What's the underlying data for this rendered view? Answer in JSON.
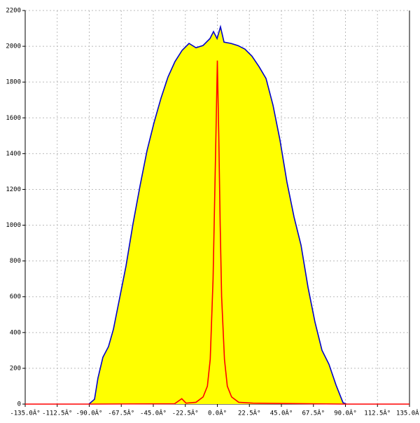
{
  "chart_data": {
    "type": "area-line",
    "xlim": [
      -135,
      135
    ],
    "ylim": [
      0,
      2200
    ],
    "xticks": [
      {
        "value": -135,
        "label": "-135.0Â°"
      },
      {
        "value": -112.5,
        "label": "-112.5Â°"
      },
      {
        "value": -90,
        "label": "-90.0Â°"
      },
      {
        "value": -67.5,
        "label": "-67.5Â°"
      },
      {
        "value": -45,
        "label": "-45.0Â°"
      },
      {
        "value": -22.5,
        "label": "-22.5Â°"
      },
      {
        "value": 0,
        "label": "0.0Â°"
      },
      {
        "value": 22.5,
        "label": "22.5Â°"
      },
      {
        "value": 45,
        "label": "45.0Â°"
      },
      {
        "value": 67.5,
        "label": "67.5Â°"
      },
      {
        "value": 90,
        "label": "90.0Â°"
      },
      {
        "value": 112.5,
        "label": "112.5Â°"
      },
      {
        "value": 135,
        "label": "135.0Â°"
      }
    ],
    "yticks": [
      0,
      200,
      400,
      600,
      800,
      1000,
      1200,
      1400,
      1600,
      1800,
      2000,
      2200
    ],
    "grid": true,
    "series": [
      {
        "color": "#0000cc",
        "fill": "#ffff00",
        "x": [
          -90.2,
          -86.3,
          -83.9,
          -80.4,
          -76.5,
          -73,
          -69.1,
          -64.2,
          -59.3,
          -54.3,
          -49.4,
          -44.5,
          -39.6,
          -34.7,
          -29.8,
          -24.8,
          -19.9,
          -15,
          -10.1,
          -5.2,
          -2.7,
          -0.2,
          2.2,
          4.7,
          9.6,
          14.5,
          19.4,
          24.3,
          29.3,
          34.2,
          39.1,
          44,
          48.9,
          53.9,
          58.8,
          63.7,
          68.6,
          73.5,
          78.4,
          83.4,
          88.3,
          90.7
        ],
        "values": [
          0,
          27,
          145,
          262,
          321,
          419,
          575,
          771,
          1006,
          1221,
          1417,
          1573,
          1710,
          1828,
          1914,
          1977,
          2016,
          1992,
          2004,
          2043,
          2082,
          2043,
          2109,
          2023,
          2016,
          2004,
          1984,
          1945,
          1886,
          1820,
          1671,
          1476,
          1241,
          1045,
          888,
          653,
          458,
          301,
          223,
          106,
          8,
          0
        ]
      },
      {
        "color": "#ff0000",
        "x": [
          -135,
          -90,
          -30,
          -25,
          -22,
          -15,
          -10,
          -7,
          -5,
          -3,
          -2,
          -1,
          0,
          1,
          2,
          3,
          5,
          7,
          10,
          15,
          25,
          90,
          135
        ],
        "values": [
          0,
          0,
          2,
          30,
          5,
          10,
          40,
          100,
          250,
          700,
          1100,
          1500,
          1920,
          1500,
          1000,
          600,
          250,
          100,
          40,
          10,
          5,
          0,
          0
        ]
      }
    ]
  }
}
